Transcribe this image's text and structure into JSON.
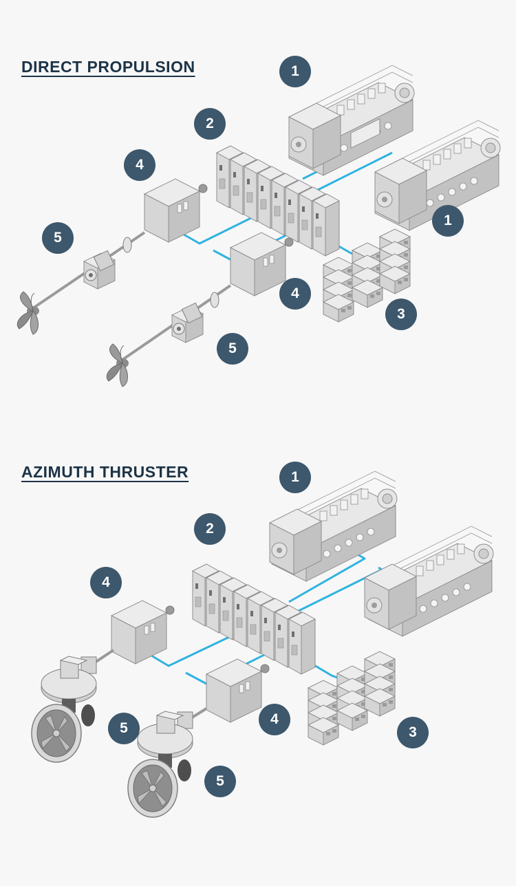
{
  "sections": {
    "direct": {
      "title": "DIRECT PROPULSION"
    },
    "azimuth": {
      "title": "AZIMUTH THRUSTER"
    }
  },
  "badges": {
    "one": "1",
    "two": "2",
    "three": "3",
    "four": "4",
    "five": "5"
  },
  "colors": {
    "badge": "#3d576c",
    "title": "#1c3346",
    "cable": "#2fb3e0",
    "equipment_top": "#ececec",
    "equipment_left": "#d9d9d9",
    "equipment_right": "#c4c4c4",
    "outline": "#8e8e8e",
    "background": "#f7f7f7"
  }
}
